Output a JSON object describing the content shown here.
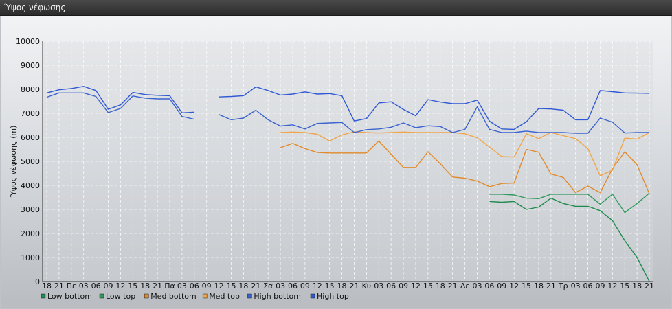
{
  "window": {
    "title": "Ύψος νέφωσης"
  },
  "chart_data": {
    "type": "line",
    "ylabel": "Ύψος νέφωσης (m)",
    "ylim": [
      0,
      10000
    ],
    "yticks": [
      0,
      1000,
      2000,
      3000,
      4000,
      5000,
      6000,
      7000,
      8000,
      9000,
      10000
    ],
    "grid": true,
    "legend_position": "bottom-left",
    "x_labels": [
      "18",
      "21",
      "Πε",
      "03",
      "06",
      "09",
      "12",
      "15",
      "18",
      "21",
      "Πα",
      "03",
      "06",
      "09",
      "12",
      "15",
      "18",
      "21",
      "Σα",
      "03",
      "06",
      "09",
      "12",
      "15",
      "18",
      "21",
      "Κυ",
      "03",
      "06",
      "09",
      "12",
      "15",
      "18",
      "21",
      "Δε",
      "03",
      "06",
      "09",
      "12",
      "15",
      "18",
      "21",
      "Τρ",
      "03",
      "06",
      "09",
      "12",
      "15",
      "18",
      "21"
    ],
    "series": [
      {
        "name": "Low bottom",
        "color": "#1e8a4e",
        "values": [
          null,
          null,
          null,
          null,
          null,
          null,
          null,
          null,
          null,
          null,
          null,
          null,
          null,
          null,
          null,
          null,
          null,
          null,
          null,
          null,
          null,
          null,
          null,
          null,
          null,
          null,
          null,
          null,
          null,
          null,
          null,
          null,
          null,
          null,
          null,
          null,
          3330,
          3300,
          3330,
          3000,
          3100,
          3470,
          3250,
          3130,
          3130,
          2950,
          2530,
          1700,
          1000,
          0
        ]
      },
      {
        "name": "Low top",
        "color": "#2e9a5c",
        "values": [
          null,
          null,
          null,
          null,
          null,
          null,
          null,
          null,
          null,
          null,
          null,
          null,
          null,
          null,
          null,
          null,
          null,
          null,
          null,
          null,
          null,
          null,
          null,
          null,
          null,
          null,
          null,
          null,
          null,
          null,
          null,
          null,
          null,
          null,
          null,
          null,
          3630,
          3630,
          3600,
          3470,
          3450,
          3630,
          3630,
          3630,
          3630,
          3220,
          3630,
          2870,
          3250,
          3680
        ]
      },
      {
        "name": "Med bottom",
        "color": "#e08a2a",
        "values": [
          null,
          null,
          null,
          null,
          null,
          null,
          null,
          null,
          null,
          null,
          null,
          null,
          null,
          null,
          null,
          null,
          null,
          null,
          null,
          5570,
          5750,
          5530,
          5370,
          5350,
          5350,
          5350,
          5350,
          5850,
          5300,
          4750,
          4750,
          5400,
          4900,
          4350,
          4300,
          4180,
          3950,
          4080,
          4100,
          5500,
          5380,
          4470,
          4330,
          3700,
          3970,
          3700,
          4700,
          5400,
          4860,
          3650
        ]
      },
      {
        "name": "Med top",
        "color": "#f0a548",
        "values": [
          null,
          null,
          null,
          null,
          null,
          null,
          null,
          null,
          null,
          null,
          null,
          null,
          null,
          null,
          null,
          null,
          null,
          null,
          null,
          6200,
          6220,
          6200,
          6130,
          5850,
          6100,
          6230,
          6200,
          6180,
          6200,
          6220,
          6200,
          6200,
          6200,
          6200,
          6150,
          5980,
          5600,
          5200,
          5180,
          6150,
          5950,
          6200,
          6070,
          5950,
          5530,
          4400,
          4630,
          5970,
          5930,
          6200
        ]
      },
      {
        "name": "High bottom",
        "color": "#3b63cf",
        "values": [
          7670,
          7850,
          7850,
          7850,
          7700,
          7030,
          7200,
          7720,
          7630,
          7600,
          7600,
          6870,
          6750,
          null,
          6950,
          6730,
          6800,
          7130,
          6730,
          6470,
          6520,
          6350,
          6580,
          6600,
          6620,
          6200,
          6320,
          6350,
          6420,
          6600,
          6400,
          6480,
          6450,
          6200,
          6330,
          7270,
          6330,
          6200,
          6200,
          6260,
          6200,
          6200,
          6200,
          6170,
          6170,
          6800,
          6630,
          6180,
          6200,
          6200
        ]
      },
      {
        "name": "High top",
        "color": "#2f57d6",
        "values": [
          7850,
          7980,
          8030,
          8120,
          7950,
          7170,
          7350,
          7870,
          7780,
          7750,
          7730,
          7020,
          7050,
          null,
          7680,
          7700,
          7730,
          8100,
          7950,
          7760,
          7800,
          7890,
          7800,
          7820,
          7730,
          6680,
          6780,
          7430,
          7480,
          7160,
          6900,
          7570,
          7470,
          7400,
          7400,
          7550,
          6670,
          6350,
          6330,
          6650,
          7200,
          7180,
          7130,
          6730,
          6730,
          7950,
          7900,
          7850,
          7840,
          7830
        ]
      }
    ]
  }
}
